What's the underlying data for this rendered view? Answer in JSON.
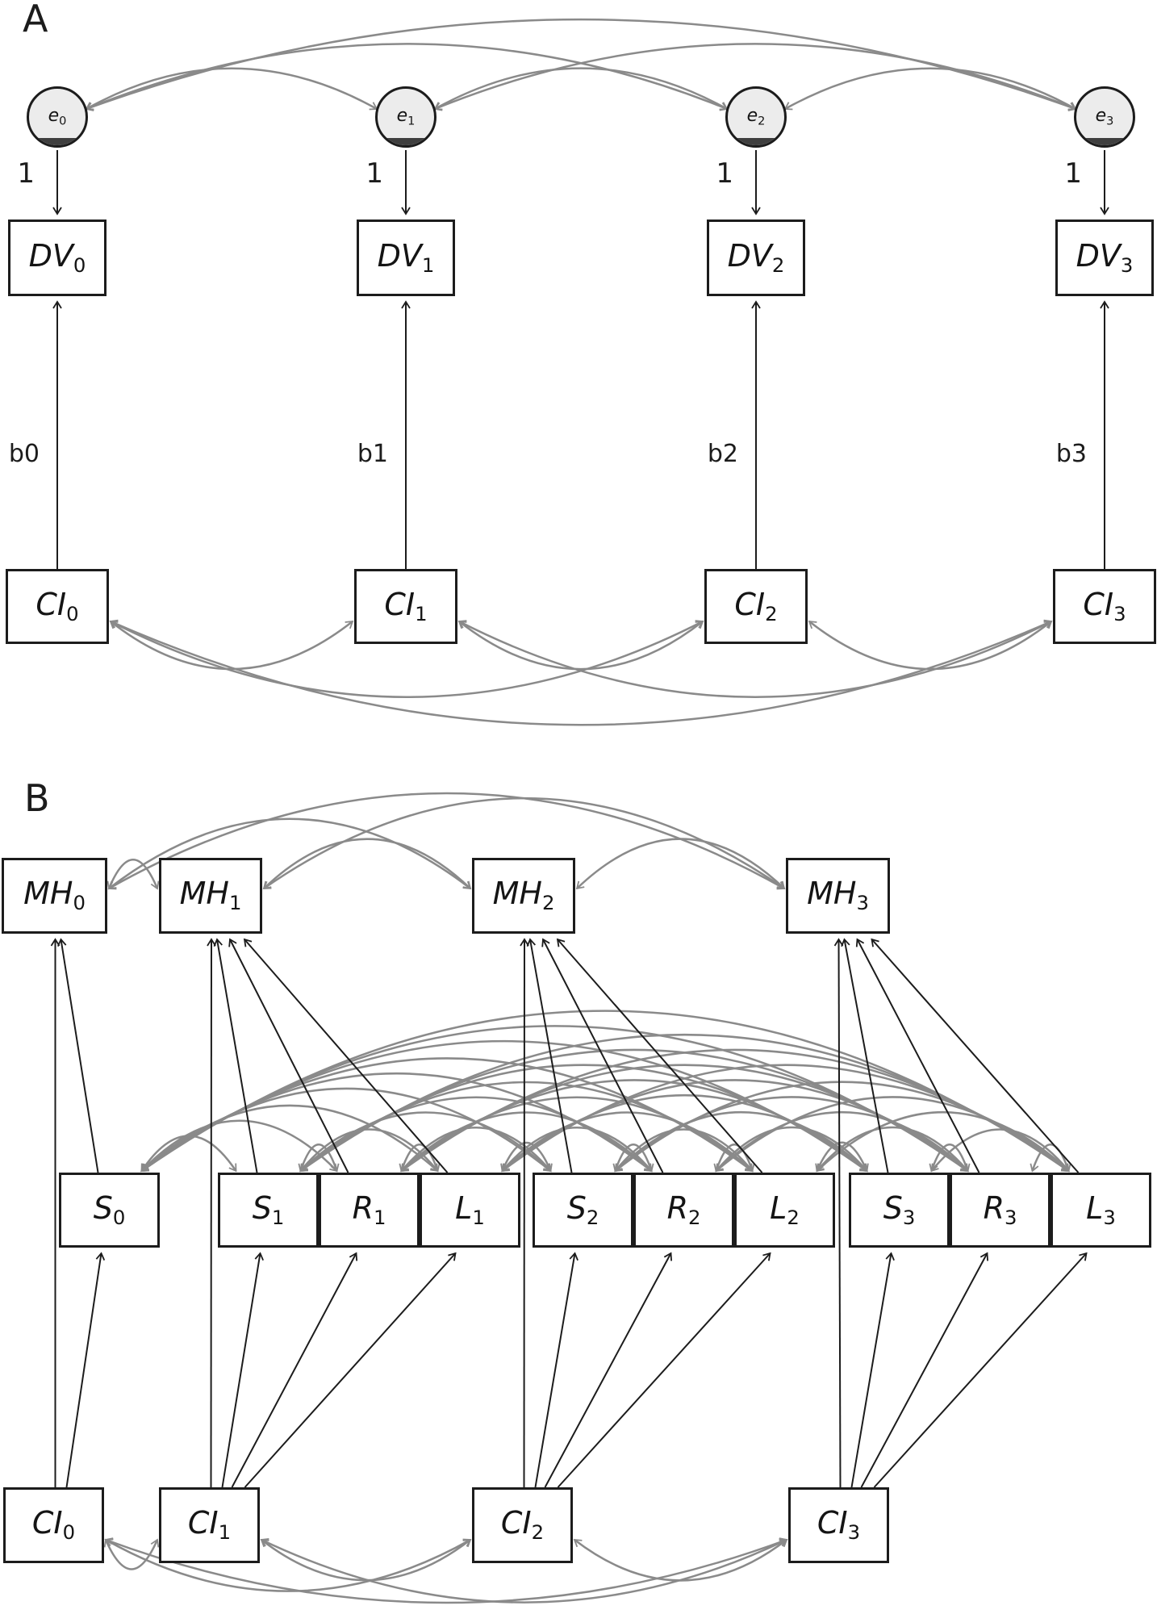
{
  "colors": {
    "edge_black": "#1c1c1c",
    "edge_gray": "#8a8a8a",
    "box_border": "#1c1c1c",
    "box_fill": "#ffffff",
    "error_fill": "#ececec",
    "error_shade": "#3f3f3f",
    "background": "#ffffff"
  },
  "panel_a": {
    "label": "A",
    "error_nodes": [
      {
        "id": "e0",
        "label": "e",
        "sub": "0"
      },
      {
        "id": "e1",
        "label": "e",
        "sub": "1"
      },
      {
        "id": "e2",
        "label": "e",
        "sub": "2"
      },
      {
        "id": "e3",
        "label": "e",
        "sub": "3"
      }
    ],
    "dv_nodes": [
      {
        "id": "DV0",
        "label": "DV",
        "sub": "0"
      },
      {
        "id": "DV1",
        "label": "DV",
        "sub": "1"
      },
      {
        "id": "DV2",
        "label": "DV",
        "sub": "2"
      },
      {
        "id": "DV3",
        "label": "DV",
        "sub": "3"
      }
    ],
    "ci_nodes": [
      {
        "id": "CI0a",
        "label": "CI",
        "sub": "0"
      },
      {
        "id": "CI1a",
        "label": "CI",
        "sub": "1"
      },
      {
        "id": "CI2a",
        "label": "CI",
        "sub": "2"
      },
      {
        "id": "CI3a",
        "label": "CI",
        "sub": "3"
      }
    ],
    "directed_edges": [
      {
        "from": "e0",
        "to": "DV0",
        "label": "1"
      },
      {
        "from": "e1",
        "to": "DV1",
        "label": "1"
      },
      {
        "from": "e2",
        "to": "DV2",
        "label": "1"
      },
      {
        "from": "e3",
        "to": "DV3",
        "label": "1"
      },
      {
        "from": "CI0a",
        "to": "DV0",
        "label": "b0"
      },
      {
        "from": "CI1a",
        "to": "DV1",
        "label": "b1"
      },
      {
        "from": "CI2a",
        "to": "DV2",
        "label": "b2"
      },
      {
        "from": "CI3a",
        "to": "DV3",
        "label": "b3"
      }
    ],
    "correlation_sets": [
      {
        "name": "error_covariances",
        "pairs": "all",
        "among": [
          "e0",
          "e1",
          "e2",
          "e3"
        ]
      },
      {
        "name": "ci_covariances_a",
        "pairs": "all",
        "among": [
          "CI0a",
          "CI1a",
          "CI2a",
          "CI3a"
        ]
      }
    ]
  },
  "panel_b": {
    "label": "B",
    "mh_nodes": [
      {
        "id": "MH0",
        "label": "MH",
        "sub": "0"
      },
      {
        "id": "MH1",
        "label": "MH",
        "sub": "1"
      },
      {
        "id": "MH2",
        "label": "MH",
        "sub": "2"
      },
      {
        "id": "MH3",
        "label": "MH",
        "sub": "3"
      }
    ],
    "indicator_nodes": [
      {
        "id": "S0",
        "label": "S",
        "sub": "0"
      },
      {
        "id": "S1",
        "label": "S",
        "sub": "1"
      },
      {
        "id": "R1",
        "label": "R",
        "sub": "1"
      },
      {
        "id": "L1",
        "label": "L",
        "sub": "1"
      },
      {
        "id": "S2",
        "label": "S",
        "sub": "2"
      },
      {
        "id": "R2",
        "label": "R",
        "sub": "2"
      },
      {
        "id": "L2",
        "label": "L",
        "sub": "2"
      },
      {
        "id": "S3",
        "label": "S",
        "sub": "3"
      },
      {
        "id": "R3",
        "label": "R",
        "sub": "3"
      },
      {
        "id": "L3",
        "label": "L",
        "sub": "3"
      }
    ],
    "ci_nodes": [
      {
        "id": "CI0b",
        "label": "CI",
        "sub": "0"
      },
      {
        "id": "CI1b",
        "label": "CI",
        "sub": "1"
      },
      {
        "id": "CI2b",
        "label": "CI",
        "sub": "2"
      },
      {
        "id": "CI3b",
        "label": "CI",
        "sub": "3"
      }
    ],
    "directed_edges": [
      {
        "from": "CI0b",
        "to": "MH0"
      },
      {
        "from": "CI0b",
        "to": "S0"
      },
      {
        "from": "S0",
        "to": "MH0"
      },
      {
        "from": "CI1b",
        "to": "MH1"
      },
      {
        "from": "CI1b",
        "to": "S1"
      },
      {
        "from": "CI1b",
        "to": "R1"
      },
      {
        "from": "CI1b",
        "to": "L1"
      },
      {
        "from": "S1",
        "to": "MH1"
      },
      {
        "from": "R1",
        "to": "MH1"
      },
      {
        "from": "L1",
        "to": "MH1"
      },
      {
        "from": "CI2b",
        "to": "MH2"
      },
      {
        "from": "CI2b",
        "to": "S2"
      },
      {
        "from": "CI2b",
        "to": "R2"
      },
      {
        "from": "CI2b",
        "to": "L2"
      },
      {
        "from": "S2",
        "to": "MH2"
      },
      {
        "from": "R2",
        "to": "MH2"
      },
      {
        "from": "L2",
        "to": "MH2"
      },
      {
        "from": "CI3b",
        "to": "MH3"
      },
      {
        "from": "CI3b",
        "to": "S3"
      },
      {
        "from": "CI3b",
        "to": "R3"
      },
      {
        "from": "CI3b",
        "to": "L3"
      },
      {
        "from": "S3",
        "to": "MH3"
      },
      {
        "from": "R3",
        "to": "MH3"
      },
      {
        "from": "L3",
        "to": "MH3"
      }
    ],
    "correlation_sets": [
      {
        "name": "mh_covariances",
        "pairs": "all",
        "among": [
          "MH0",
          "MH1",
          "MH2",
          "MH3"
        ]
      },
      {
        "name": "indicator_covariances",
        "pairs": "all",
        "among": [
          "S0",
          "S1",
          "R1",
          "L1",
          "S2",
          "R2",
          "L2",
          "S3",
          "R3",
          "L3"
        ]
      },
      {
        "name": "ci_covariances_b",
        "pairs": "all",
        "among": [
          "CI0b",
          "CI1b",
          "CI2b",
          "CI3b"
        ]
      }
    ]
  }
}
